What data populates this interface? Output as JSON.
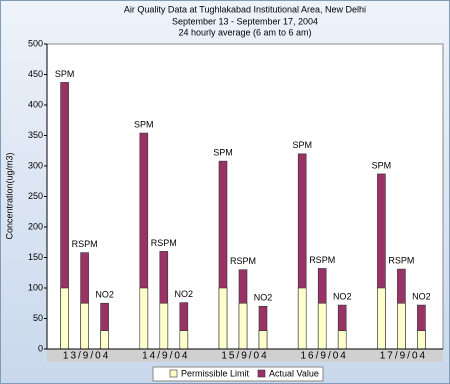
{
  "chart_data": {
    "type": "bar",
    "title": "Air Quality Data at Tughlakabad Institutional Area, New Delhi",
    "subtitle": [
      "September 13 - September 17, 2004",
      "24 hourly average (6 am to 6 am)"
    ],
    "y_label": "Concentration(ug/m3)",
    "groups": [
      "13/9/04",
      "14/9/04",
      "15/9/04",
      "16/9/04",
      "17/9/04"
    ],
    "pollutants": [
      "SPM",
      "RSPM",
      "NO2"
    ],
    "series": [
      {
        "name": "Permissible Limit",
        "color": "#ffffcc",
        "values": [
          100,
          75,
          30,
          100,
          75,
          30,
          100,
          75,
          30,
          100,
          75,
          30,
          100,
          75,
          30
        ]
      },
      {
        "name": "Actual Value",
        "color": "#993366",
        "values": [
          437,
          158,
          75,
          354,
          160,
          76,
          308,
          130,
          70,
          320,
          132,
          72,
          287,
          131,
          72
        ]
      }
    ],
    "ylim": [
      0,
      500
    ],
    "yticks": [
      0,
      50,
      100,
      150,
      200,
      250,
      300,
      350,
      400,
      450,
      500
    ],
    "grid": false,
    "legend": "bottom"
  }
}
